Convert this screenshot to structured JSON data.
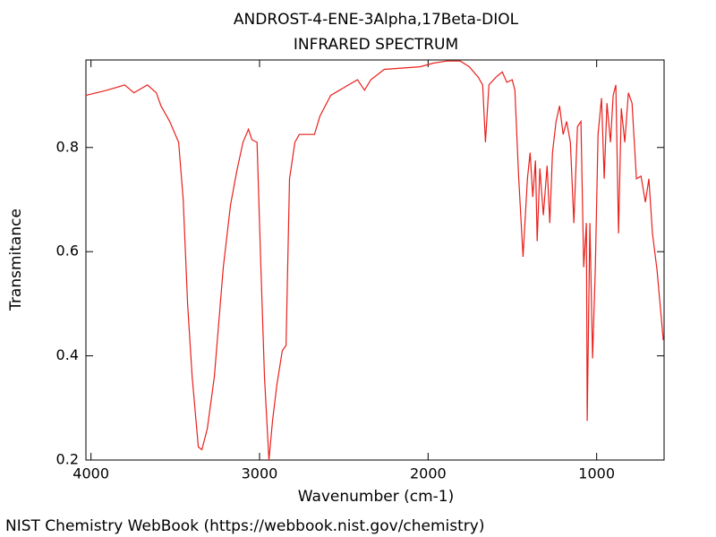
{
  "chart_data": {
    "type": "line",
    "title": "ANDROST-4-ENE-3Alpha,17Beta-DIOL",
    "subtitle": "INFRARED SPECTRUM",
    "x_label": "Wavenumber (cm-1)",
    "y_label": "Transmitance",
    "footer": "NIST Chemistry WebBook (https://webbook.nist.gov/chemistry)",
    "xlim": [
      4030,
      600
    ],
    "ylim": [
      0.2,
      0.968
    ],
    "xticks": [
      4000,
      3000,
      2000,
      1000
    ],
    "yticks": [
      0.2,
      0.4,
      0.6,
      0.8
    ],
    "x": [
      4030,
      3905,
      3800,
      3745,
      3665,
      3612,
      3585,
      3533,
      3480,
      3453,
      3427,
      3400,
      3363,
      3342,
      3310,
      3268,
      3215,
      3172,
      3135,
      3098,
      3066,
      3045,
      3015,
      2992,
      2971,
      2944,
      2923,
      2897,
      2865,
      2843,
      2822,
      2790,
      2764,
      2711,
      2674,
      2642,
      2578,
      2472,
      2419,
      2377,
      2340,
      2260,
      2048,
      1968,
      1889,
      1809,
      1756,
      1703,
      1676,
      1660,
      1639,
      1597,
      1560,
      1533,
      1501,
      1485,
      1464,
      1437,
      1411,
      1395,
      1379,
      1363,
      1353,
      1337,
      1316,
      1294,
      1278,
      1262,
      1241,
      1220,
      1199,
      1178,
      1156,
      1135,
      1114,
      1093,
      1077,
      1061,
      1056,
      1040,
      1024,
      1008,
      992,
      971,
      955,
      939,
      918,
      902,
      886,
      870,
      854,
      833,
      812,
      790,
      764,
      737,
      711,
      690,
      669,
      642,
      605
    ],
    "series": [
      {
        "name": "Transmitance",
        "color": "#e8201c",
        "values": [
          0.9,
          0.91,
          0.92,
          0.905,
          0.92,
          0.905,
          0.88,
          0.85,
          0.81,
          0.7,
          0.5,
          0.36,
          0.225,
          0.22,
          0.26,
          0.36,
          0.57,
          0.69,
          0.755,
          0.81,
          0.835,
          0.815,
          0.81,
          0.57,
          0.36,
          0.2,
          0.275,
          0.345,
          0.41,
          0.42,
          0.74,
          0.81,
          0.825,
          0.825,
          0.825,
          0.86,
          0.9,
          0.92,
          0.93,
          0.91,
          0.93,
          0.95,
          0.955,
          0.962,
          0.966,
          0.966,
          0.955,
          0.935,
          0.92,
          0.81,
          0.92,
          0.935,
          0.945,
          0.925,
          0.93,
          0.91,
          0.75,
          0.59,
          0.74,
          0.79,
          0.705,
          0.775,
          0.62,
          0.76,
          0.67,
          0.765,
          0.655,
          0.79,
          0.85,
          0.88,
          0.825,
          0.85,
          0.81,
          0.655,
          0.84,
          0.85,
          0.57,
          0.655,
          0.275,
          0.655,
          0.395,
          0.57,
          0.825,
          0.895,
          0.74,
          0.885,
          0.81,
          0.9,
          0.92,
          0.635,
          0.875,
          0.81,
          0.905,
          0.885,
          0.74,
          0.745,
          0.695,
          0.74,
          0.635,
          0.565,
          0.43
        ]
      }
    ]
  }
}
